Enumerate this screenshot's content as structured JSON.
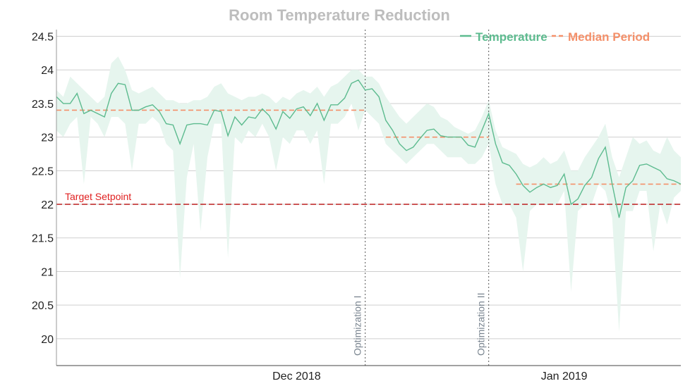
{
  "chart_data": {
    "type": "line",
    "title": "Room Temperature Reduction",
    "xlabel": "",
    "ylabel": "",
    "ylim": [
      19.6,
      24.6
    ],
    "y_ticks": [
      "24.5",
      "24",
      "23.5",
      "23",
      "22.5",
      "22",
      "21.5",
      "21",
      "20.5",
      "20"
    ],
    "x_ticks": [
      {
        "label": "Dec 2018",
        "index": 35
      },
      {
        "label": "Jan 2019",
        "index": 74
      }
    ],
    "grid": true,
    "legend_position": "top-right",
    "series": [
      {
        "name": "Temperature",
        "color": "#5dbb8f",
        "band_color": "#e6f5ee",
        "values": [
          23.6,
          23.5,
          23.5,
          23.65,
          23.35,
          23.4,
          23.35,
          23.3,
          23.65,
          23.8,
          23.78,
          23.4,
          23.4,
          23.45,
          23.48,
          23.38,
          23.2,
          23.18,
          22.9,
          23.18,
          23.2,
          23.2,
          23.18,
          23.4,
          23.38,
          23.02,
          23.3,
          23.18,
          23.3,
          23.28,
          23.42,
          23.32,
          23.12,
          23.38,
          23.28,
          23.42,
          23.45,
          23.32,
          23.5,
          23.25,
          23.48,
          23.48,
          23.58,
          23.8,
          23.85,
          23.7,
          23.72,
          23.6,
          23.25,
          23.1,
          22.9,
          22.8,
          22.85,
          22.98,
          23.1,
          23.12,
          23.02,
          23.0,
          23.0,
          23.0,
          22.88,
          22.85,
          23.1,
          23.35,
          22.9,
          22.62,
          22.58,
          22.45,
          22.28,
          22.18,
          22.25,
          22.3,
          22.25,
          22.28,
          22.45,
          22.0,
          22.08,
          22.28,
          22.4,
          22.68,
          22.85,
          22.3,
          21.8,
          22.25,
          22.35,
          22.58,
          22.6,
          22.55,
          22.5,
          22.38,
          22.35,
          22.3
        ],
        "band_low": [
          23.1,
          23.0,
          23.2,
          23.3,
          22.3,
          23.3,
          23.2,
          23.0,
          23.3,
          23.3,
          23.2,
          22.5,
          23.2,
          23.2,
          23.3,
          23.2,
          22.9,
          22.8,
          20.9,
          22.4,
          22.9,
          21.6,
          22.7,
          23.2,
          23.2,
          21.2,
          23.0,
          22.9,
          23.1,
          23.0,
          23.2,
          23.0,
          22.5,
          23.0,
          22.9,
          23.1,
          23.1,
          22.9,
          23.1,
          22.3,
          23.2,
          23.2,
          23.3,
          23.5,
          23.1,
          23.4,
          23.3,
          23.2,
          22.9,
          22.8,
          22.7,
          22.6,
          22.7,
          22.8,
          22.9,
          22.9,
          22.8,
          22.7,
          22.7,
          22.7,
          22.6,
          22.6,
          22.7,
          22.9,
          22.3,
          22.0,
          22.0,
          21.8,
          21.0,
          21.9,
          22.0,
          22.0,
          22.0,
          22.0,
          22.2,
          20.7,
          21.9,
          22.0,
          22.0,
          22.3,
          22.2,
          21.8,
          20.1,
          21.9,
          21.9,
          22.2,
          22.2,
          21.3,
          22.0,
          21.7,
          22.1,
          22.2
        ],
        "band_high": [
          23.7,
          23.6,
          23.9,
          23.8,
          23.7,
          23.6,
          23.5,
          23.6,
          24.1,
          24.2,
          24.0,
          23.7,
          23.65,
          23.7,
          23.75,
          23.65,
          23.55,
          23.55,
          23.5,
          23.5,
          23.55,
          23.55,
          23.6,
          23.75,
          23.8,
          23.65,
          23.6,
          23.55,
          23.6,
          23.6,
          23.65,
          23.6,
          23.5,
          23.6,
          23.55,
          23.65,
          23.7,
          23.65,
          23.75,
          23.6,
          23.75,
          23.8,
          23.9,
          24.0,
          24.0,
          23.9,
          23.9,
          23.8,
          23.6,
          23.45,
          23.3,
          23.2,
          23.3,
          23.4,
          23.5,
          23.45,
          23.3,
          23.25,
          23.15,
          23.1,
          23.05,
          23.1,
          23.3,
          23.55,
          23.1,
          22.85,
          22.8,
          22.75,
          22.6,
          22.55,
          22.6,
          22.7,
          22.6,
          22.65,
          22.8,
          22.5,
          22.5,
          22.7,
          22.85,
          23.0,
          23.2,
          22.7,
          22.4,
          22.7,
          23.0,
          22.9,
          22.95,
          22.8,
          22.75,
          23.0,
          22.8,
          22.7
        ]
      },
      {
        "name": "Median Period",
        "color": "#f4906a",
        "segments": [
          {
            "start": 0,
            "end": 45,
            "value": 23.4
          },
          {
            "start": 48,
            "end": 63,
            "value": 23.0
          },
          {
            "start": 67,
            "end": 91,
            "value": 22.3
          }
        ]
      }
    ],
    "target": {
      "label": "Target Setpoint",
      "value": 22,
      "color": "#c03030"
    },
    "annotations": [
      {
        "label": "Optimization I",
        "index": 45
      },
      {
        "label": "Optimization II",
        "index": 63
      }
    ]
  }
}
